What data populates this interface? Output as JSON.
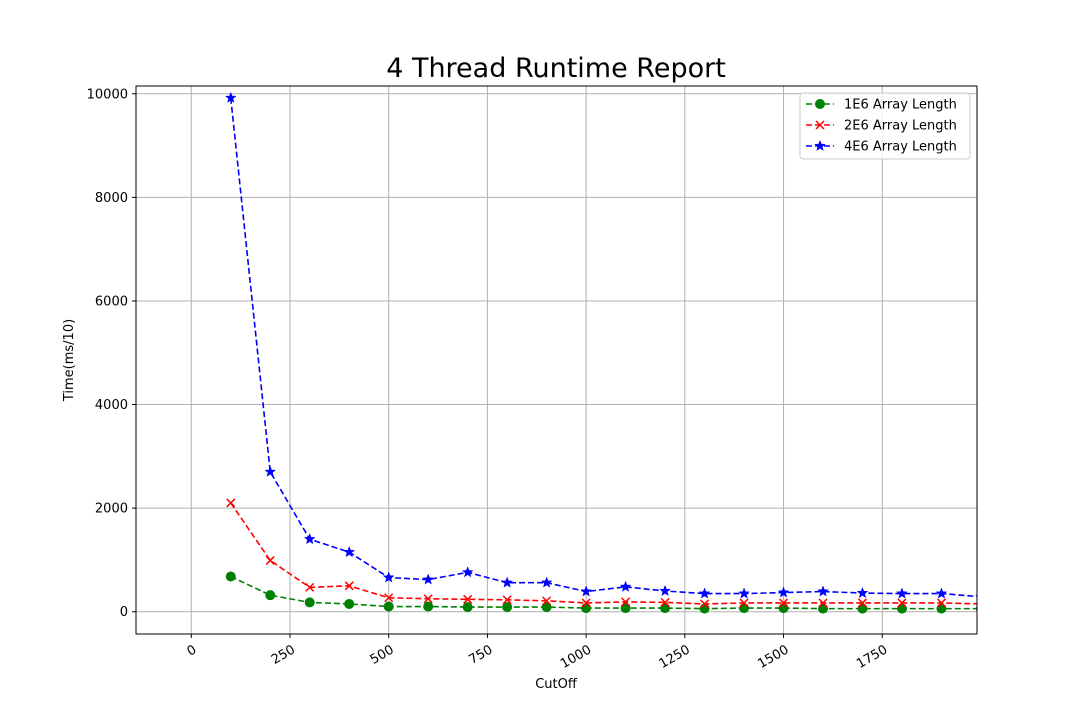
{
  "chart_data": {
    "type": "line",
    "title": "4 Thread Runtime Report",
    "xlabel": "CutOff",
    "ylabel": "Time(ms/10)",
    "xlim": [
      -140,
      1990
    ],
    "ylim": [
      -430,
      10150
    ],
    "xticks": [
      "0",
      "250",
      "500",
      "750",
      "1000",
      "1250",
      "1500",
      "1750"
    ],
    "xtick_values": [
      0,
      250,
      500,
      750,
      1000,
      1250,
      1500,
      1750
    ],
    "yticks": [
      "0",
      "2000",
      "4000",
      "6000",
      "8000",
      "10000"
    ],
    "ytick_values": [
      0,
      2000,
      4000,
      6000,
      8000,
      10000
    ],
    "grid": true,
    "legend_position": "top-right",
    "x": [
      100,
      200,
      300,
      400,
      500,
      600,
      700,
      800,
      900,
      1000,
      1100,
      1200,
      1300,
      1400,
      1500,
      1600,
      1700,
      1800,
      1900,
      2000
    ],
    "series": [
      {
        "name": "1E6 Array Length",
        "color": "#008000",
        "marker": "circle",
        "values": [
          680,
          320,
          180,
          150,
          100,
          100,
          90,
          90,
          90,
          70,
          70,
          70,
          60,
          70,
          70,
          60,
          60,
          60,
          60,
          60
        ]
      },
      {
        "name": "2E6 Array Length",
        "color": "#ff0000",
        "marker": "x",
        "values": [
          2100,
          990,
          470,
          500,
          270,
          250,
          240,
          230,
          210,
          170,
          190,
          180,
          150,
          170,
          170,
          170,
          170,
          170,
          170,
          150
        ]
      },
      {
        "name": "4E6 Array Length",
        "color": "#0000ff",
        "marker": "star",
        "values": [
          9920,
          2700,
          1400,
          1150,
          660,
          620,
          760,
          560,
          560,
          390,
          480,
          400,
          350,
          350,
          370,
          390,
          360,
          350,
          350,
          290
        ]
      }
    ]
  }
}
